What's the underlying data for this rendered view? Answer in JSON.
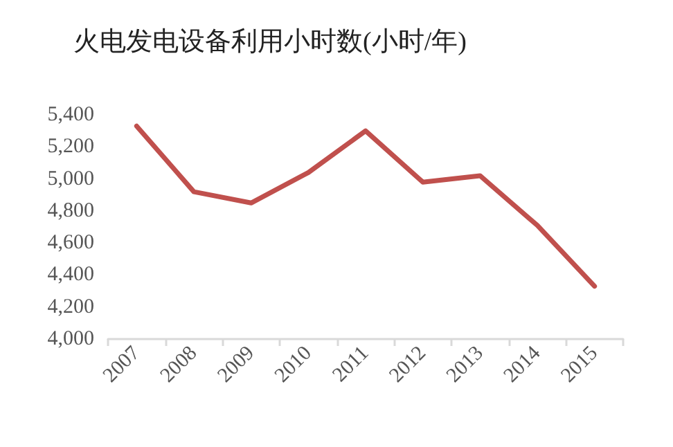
{
  "chart_data": {
    "type": "line",
    "title": "火电发电设备利用小时数(小时/年)",
    "categories": [
      "2007",
      "2008",
      "2009",
      "2010",
      "2011",
      "2012",
      "2013",
      "2014",
      "2015"
    ],
    "series": [
      {
        "color": "#c0504d",
        "values": [
          5330,
          4920,
          4850,
          5040,
          5300,
          4980,
          5020,
          4710,
          4330
        ]
      }
    ],
    "ylim": [
      4000,
      5400
    ],
    "yticks": [
      {
        "value": 4000,
        "label": "4,000"
      },
      {
        "value": 4200,
        "label": "4,200"
      },
      {
        "value": 4400,
        "label": "4,400"
      },
      {
        "value": 4600,
        "label": "4,600"
      },
      {
        "value": 4800,
        "label": "4,800"
      },
      {
        "value": 5000,
        "label": "5,000"
      },
      {
        "value": 5200,
        "label": "5,200"
      },
      {
        "value": 5400,
        "label": "5,400"
      }
    ],
    "grid": false,
    "marker": "none",
    "line_style": "solid"
  }
}
